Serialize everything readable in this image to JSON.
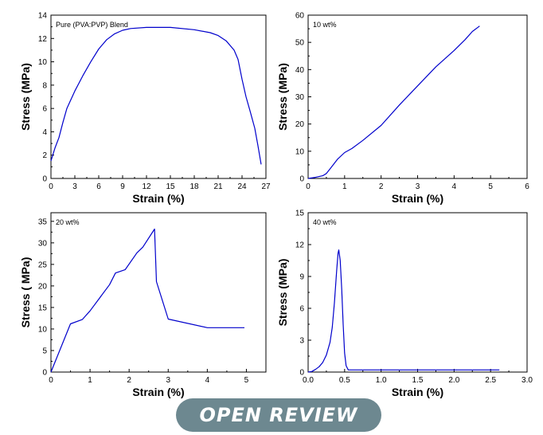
{
  "chart_data": [
    {
      "type": "line",
      "annotation": "Pure (PVA:PVP) Blend",
      "xlabel": "Strain (%)",
      "ylabel": "Stress (MPa)",
      "xlim": [
        0,
        27
      ],
      "ylim": [
        0,
        14
      ],
      "xticks": [
        "0",
        "3",
        "6",
        "9",
        "12",
        "15",
        "18",
        "21",
        "24",
        "27"
      ],
      "yticks": [
        "0",
        "2",
        "4",
        "6",
        "8",
        "10",
        "12",
        "14"
      ],
      "series": [
        {
          "color": "#0000cc",
          "points": [
            [
              0,
              1.5
            ],
            [
              0.5,
              2.6
            ],
            [
              1,
              3.5
            ],
            [
              1.5,
              4.8
            ],
            [
              2,
              6
            ],
            [
              3,
              7.5
            ],
            [
              4,
              8.8
            ],
            [
              5,
              10
            ],
            [
              6,
              11.1
            ],
            [
              7,
              11.9
            ],
            [
              8,
              12.4
            ],
            [
              9,
              12.7
            ],
            [
              10,
              12.85
            ],
            [
              12,
              12.95
            ],
            [
              15,
              12.95
            ],
            [
              18,
              12.75
            ],
            [
              20,
              12.5
            ],
            [
              21,
              12.25
            ],
            [
              22,
              11.8
            ],
            [
              23,
              11
            ],
            [
              23.5,
              10.2
            ],
            [
              24,
              8.5
            ],
            [
              24.5,
              7
            ],
            [
              25,
              5.8
            ],
            [
              25.6,
              4.3
            ],
            [
              26,
              2.8
            ],
            [
              26.4,
              1.2
            ]
          ]
        }
      ]
    },
    {
      "type": "line",
      "annotation": "10 wt%",
      "xlabel": "Strain (%)",
      "ylabel": "Stress (MPa)",
      "xlim": [
        0,
        6
      ],
      "ylim": [
        0,
        60
      ],
      "xticks": [
        "0",
        "1",
        "2",
        "3",
        "4",
        "5",
        "6"
      ],
      "yticks": [
        "0",
        "10",
        "20",
        "30",
        "40",
        "50",
        "60"
      ],
      "series": [
        {
          "color": "#0000cc",
          "points": [
            [
              0,
              0
            ],
            [
              0.2,
              0.4
            ],
            [
              0.4,
              1
            ],
            [
              0.5,
              1.8
            ],
            [
              0.6,
              3.5
            ],
            [
              0.8,
              7
            ],
            [
              1,
              9.5
            ],
            [
              1.2,
              11
            ],
            [
              1.5,
              14
            ],
            [
              2,
              19.5
            ],
            [
              2.5,
              27
            ],
            [
              3,
              34
            ],
            [
              3.5,
              41
            ],
            [
              4,
              47
            ],
            [
              4.3,
              51
            ],
            [
              4.5,
              54
            ],
            [
              4.7,
              56
            ]
          ]
        }
      ]
    },
    {
      "type": "line",
      "annotation": "20 wt%",
      "xlabel": "Strain (%)",
      "ylabel": "Stress ( MPa)",
      "xlim": [
        0,
        5.5
      ],
      "ylim": [
        0,
        37
      ],
      "xticks": [
        "0",
        "1",
        "2",
        "3",
        "4",
        "5"
      ],
      "yticks": [
        "0",
        "5",
        "10",
        "15",
        "20",
        "25",
        "30",
        "35"
      ],
      "series": [
        {
          "color": "#0000cc",
          "points": [
            [
              0,
              0
            ],
            [
              0.5,
              11.2
            ],
            [
              0.8,
              12.2
            ],
            [
              1,
              14.2
            ],
            [
              1.5,
              20.3
            ],
            [
              1.65,
              23
            ],
            [
              1.9,
              23.8
            ],
            [
              2.2,
              27.7
            ],
            [
              2.35,
              29
            ],
            [
              2.65,
              33.2
            ],
            [
              2.7,
              21
            ],
            [
              3,
              12.3
            ],
            [
              4,
              10.3
            ],
            [
              4.95,
              10.3
            ]
          ]
        }
      ]
    },
    {
      "type": "line",
      "annotation": "40 wt%",
      "xlabel": "Strain (%)",
      "ylabel": "Stress (MPa)",
      "xlim": [
        0,
        3
      ],
      "ylim": [
        0,
        15
      ],
      "xticks": [
        "0.0",
        "0.5",
        "1.0",
        "1.5",
        "2.0",
        "2.5",
        "3.0"
      ],
      "yticks": [
        "0",
        "3",
        "6",
        "9",
        "12",
        "15"
      ],
      "series": [
        {
          "color": "#0000cc",
          "points": [
            [
              0,
              0
            ],
            [
              0.05,
              0.05
            ],
            [
              0.1,
              0.25
            ],
            [
              0.15,
              0.5
            ],
            [
              0.2,
              0.9
            ],
            [
              0.25,
              1.6
            ],
            [
              0.3,
              2.8
            ],
            [
              0.33,
              4.2
            ],
            [
              0.36,
              6.5
            ],
            [
              0.39,
              9.5
            ],
            [
              0.41,
              11.2
            ],
            [
              0.42,
              11.5
            ],
            [
              0.44,
              10.5
            ],
            [
              0.46,
              7.8
            ],
            [
              0.48,
              4.5
            ],
            [
              0.5,
              1.8
            ],
            [
              0.52,
              0.6
            ],
            [
              0.55,
              0.2
            ],
            [
              0.7,
              0.2
            ],
            [
              1.5,
              0.2
            ],
            [
              2.62,
              0.2
            ]
          ]
        }
      ]
    }
  ],
  "badge": {
    "text": "OPEN REVIEW",
    "color": "#6d8890"
  }
}
